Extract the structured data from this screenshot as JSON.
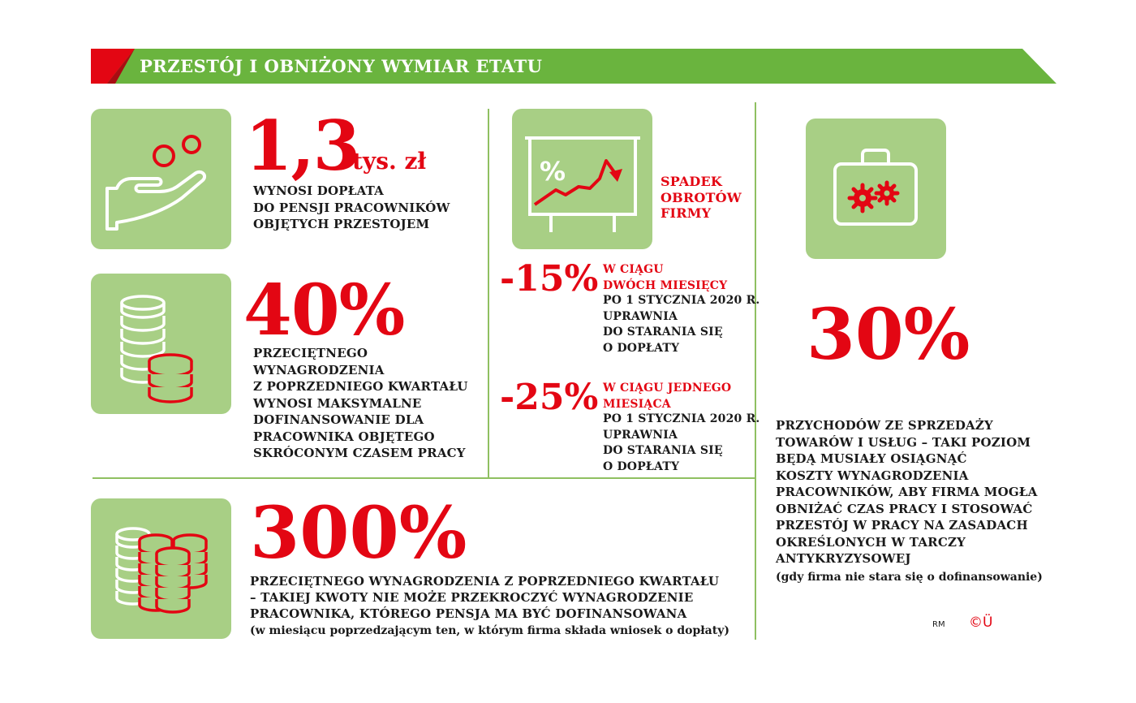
{
  "header": {
    "title": "PRZESTÓJ I OBNIŻONY WYMIAR ETATU"
  },
  "colors": {
    "red": "#e30613",
    "green": "#6ab43e",
    "tile_green": "#a8cf85",
    "dark": "#1a1a1a"
  },
  "block1": {
    "icon": "hand-coins-icon",
    "value": "1,3",
    "unit": "tys. zł",
    "lines": [
      "WYNOSI DOPŁATA",
      "DO PENSJI PRACOWNIKÓW",
      "OBJĘTYCH PRZESTOJEM"
    ]
  },
  "block2": {
    "icon": "coin-stacks-icon",
    "value": "40%",
    "lines": [
      "PRZECIĘTNEGO",
      "WYNAGRODZENIA",
      "Z POPRZEDNIEGO KWARTAŁU",
      "WYNOSI MAKSYMALNE",
      "DOFINANSOWANIE DLA",
      "PRACOWNIKA OBJĘTEGO",
      "SKRÓCONYM CZASEM PRACY"
    ]
  },
  "block3": {
    "icon": "percent-chart-board-icon",
    "label": [
      "SPADEK",
      "OBROTÓW",
      "FIRMY"
    ],
    "item1": {
      "value": "-15%",
      "red_lines": [
        "W CIĄGU",
        "DWÓCH MIESIĘCY"
      ],
      "lines": [
        "PO 1 STYCZNIA 2020 R.",
        "UPRAWNIA",
        "DO STARANIA SIĘ",
        "O DOPŁATY"
      ]
    },
    "item2": {
      "value": "-25%",
      "red_lines": [
        "W CIĄGU JEDNEGO",
        "MIESIĄCA"
      ],
      "lines": [
        "PO 1 STYCZNIA 2020 R.",
        "UPRAWNIA",
        "DO STARANIA SIĘ",
        "O DOPŁATY"
      ]
    }
  },
  "block4": {
    "icon": "briefcase-gears-icon",
    "value": "30%",
    "lines": [
      "PRZYCHODÓW ZE SPRZEDAŻY",
      "TOWARÓW I USŁUG – TAKI POZIOM",
      "BĘDĄ MUSIAŁY OSIĄGNĄĆ",
      "KOSZTY WYNAGRODZENIA",
      "PRACOWNIKÓW, ABY FIRMA MOGŁA",
      "OBNIŻAĆ CZAS PRACY I STOSOWAĆ",
      "PRZESTÓJ W PRACY NA ZASADACH",
      "OKREŚLONYCH W TARCZY",
      "ANTYKRYZYSOWEJ"
    ],
    "note": "(gdy firma nie stara się o dofinansowanie)"
  },
  "block5": {
    "icon": "many-coin-stacks-icon",
    "value": "300%",
    "lines": [
      "PRZECIĘTNEGO WYNAGRODZENIA Z POPRZEDNIEGO KWARTAŁU",
      "– TAKIEJ KWOTY NIE MOŻE PRZEKROCZYĆ WYNAGRODZENIE",
      "PRACOWNIKA, KTÓREGO PENSJA MA BYĆ DOFINANSOWANA"
    ],
    "note": "(w miesiącu poprzedzającym ten, w którym firma składa wniosek o dopłaty)"
  },
  "footer": {
    "author": "RM",
    "logo": "©Ü"
  }
}
